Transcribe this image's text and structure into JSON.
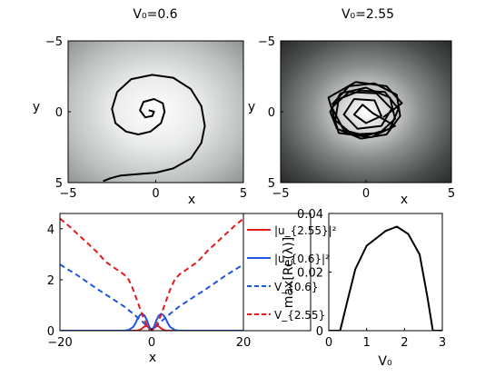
{
  "chart_data": [
    {
      "type": "heatmap",
      "title": "V₀=0.6",
      "xlabel": "x",
      "ylabel": "y",
      "xlim": [
        -5,
        5
      ],
      "ylim": [
        5,
        -5
      ],
      "xticks": [
        "−5",
        "0",
        "5"
      ],
      "yticks": [
        "−5",
        "0",
        "5"
      ],
      "background": "radial potential, light gray center to dark gray edges",
      "trajectory": [
        [
          -3.0,
          4.9
        ],
        [
          -2.6,
          4.7
        ],
        [
          -2.0,
          4.5
        ],
        [
          -1.0,
          4.4
        ],
        [
          0.0,
          4.3
        ],
        [
          1.0,
          4.0
        ],
        [
          2.0,
          3.3
        ],
        [
          2.6,
          2.2
        ],
        [
          2.8,
          1.0
        ],
        [
          2.6,
          -0.4
        ],
        [
          2.0,
          -1.6
        ],
        [
          1.0,
          -2.4
        ],
        [
          -0.2,
          -2.6
        ],
        [
          -1.4,
          -2.3
        ],
        [
          -2.2,
          -1.4
        ],
        [
          -2.5,
          -0.2
        ],
        [
          -2.3,
          0.8
        ],
        [
          -1.7,
          1.4
        ],
        [
          -1.0,
          1.6
        ],
        [
          -0.3,
          1.4
        ],
        [
          0.3,
          0.8
        ],
        [
          0.5,
          0.0
        ],
        [
          0.4,
          -0.6
        ],
        [
          -0.1,
          -0.9
        ],
        [
          -0.7,
          -0.7
        ],
        [
          -0.9,
          -0.1
        ],
        [
          -0.6,
          0.4
        ],
        [
          -0.2,
          0.3
        ],
        [
          -0.1,
          0.0
        ],
        [
          -0.4,
          -0.1
        ]
      ]
    },
    {
      "type": "heatmap",
      "title": "V₀=2.55",
      "xlabel": "x",
      "ylabel": "y",
      "xlim": [
        -5,
        5
      ],
      "ylim": [
        5,
        -5
      ],
      "xticks": [
        "−5",
        "0",
        "5"
      ],
      "yticks": [
        "−5",
        "0",
        "5"
      ],
      "background": "radial potential, white center to near-black edges",
      "trajectory": [
        [
          -2.0,
          -0.5
        ],
        [
          -1.0,
          -1.8
        ],
        [
          0.5,
          -2.0
        ],
        [
          1.8,
          -1.2
        ],
        [
          2.0,
          0.3
        ],
        [
          1.2,
          1.6
        ],
        [
          -0.3,
          1.9
        ],
        [
          -1.7,
          1.2
        ],
        [
          -2.1,
          0.0
        ],
        [
          -1.5,
          -1.3
        ],
        [
          0.0,
          -1.7
        ],
        [
          1.4,
          -1.0
        ],
        [
          1.7,
          0.5
        ],
        [
          0.8,
          1.5
        ],
        [
          -0.8,
          1.6
        ],
        [
          -1.8,
          0.6
        ],
        [
          -1.6,
          -0.9
        ],
        [
          -0.3,
          -1.5
        ],
        [
          1.1,
          -1.4
        ],
        [
          1.9,
          -0.2
        ],
        [
          1.4,
          1.2
        ],
        [
          0.0,
          1.7
        ],
        [
          -1.3,
          1.3
        ],
        [
          -2.0,
          -0.3
        ],
        [
          -1.0,
          -1.4
        ],
        [
          0.6,
          -1.3
        ],
        [
          1.5,
          -0.2
        ],
        [
          0.9,
          1.0
        ],
        [
          -0.5,
          1.2
        ],
        [
          -1.3,
          0.2
        ],
        [
          -0.7,
          -0.9
        ],
        [
          0.5,
          -0.8
        ],
        [
          0.9,
          0.3
        ],
        [
          0.0,
          0.8
        ],
        [
          -0.7,
          0.2
        ],
        [
          -0.2,
          -0.5
        ],
        [
          0.4,
          0.1
        ],
        [
          1.7,
          1.0
        ],
        [
          0.3,
          1.8
        ],
        [
          -1.6,
          1.5
        ],
        [
          -2.2,
          -1.0
        ],
        [
          -0.6,
          -2.1
        ],
        [
          1.2,
          -1.8
        ],
        [
          2.1,
          -0.6
        ],
        [
          1.0,
          0.4
        ]
      ]
    },
    {
      "type": "line",
      "xlabel": "x",
      "xlim": [
        -20,
        20
      ],
      "ylim": [
        0,
        4.6
      ],
      "xticks": [
        "−20",
        "0",
        "20"
      ],
      "yticks": [
        "0",
        "2",
        "4"
      ],
      "legend_position": "right (outside)",
      "series": [
        {
          "name": "|u_{2.55}|²",
          "color": "#e41a1c",
          "style": "solid",
          "x": [
            -20,
            -4,
            -3,
            -2.5,
            -2,
            -1.5,
            -1,
            -0.5,
            -0.2,
            0,
            0.2,
            0.5,
            1,
            1.5,
            2,
            2.5,
            3,
            4,
            20
          ],
          "y": [
            0,
            0,
            0.01,
            0.04,
            0.1,
            0.17,
            0.18,
            0.1,
            0.03,
            0,
            0.03,
            0.1,
            0.18,
            0.17,
            0.1,
            0.04,
            0.01,
            0,
            0
          ]
        },
        {
          "name": "|u_{0.6}|²",
          "color": "#2255dd",
          "style": "solid",
          "x": [
            -20,
            -6,
            -5,
            -4,
            -3.5,
            -3,
            -2.5,
            -2,
            -1.5,
            -1,
            -0.5,
            0,
            0.5,
            1,
            1.5,
            2,
            2.5,
            3,
            3.5,
            4,
            5,
            6,
            20
          ],
          "y": [
            0,
            0,
            0.03,
            0.15,
            0.3,
            0.5,
            0.62,
            0.66,
            0.58,
            0.4,
            0.15,
            0,
            0.15,
            0.4,
            0.58,
            0.66,
            0.62,
            0.5,
            0.3,
            0.15,
            0.03,
            0,
            0
          ]
        },
        {
          "name": "V_{0.6}",
          "color": "#2255dd",
          "style": "dashed",
          "x": [
            -20,
            -16,
            -12,
            -9,
            -6,
            -4,
            -2,
            -1,
            0,
            1,
            2,
            4,
            6,
            9,
            12,
            16,
            20
          ],
          "y": [
            2.6,
            2.15,
            1.65,
            1.3,
            0.95,
            0.66,
            0.35,
            0.17,
            0,
            0.17,
            0.35,
            0.66,
            0.95,
            1.3,
            1.65,
            2.15,
            2.6
          ]
        },
        {
          "name": "V_{2.55}",
          "color": "#e41a1c",
          "style": "dashed",
          "x": [
            -20,
            -18,
            -15,
            -12,
            -10,
            -8,
            -6,
            -5,
            -4,
            -3,
            -2,
            -1,
            -0.5,
            0,
            0.5,
            1,
            2,
            3,
            4,
            5,
            6,
            8,
            10,
            12,
            15,
            18,
            20
          ],
          "y": [
            4.4,
            4.1,
            3.6,
            3.1,
            2.7,
            2.45,
            2.2,
            2.0,
            1.6,
            1.1,
            0.6,
            0.2,
            0.05,
            0,
            0.05,
            0.2,
            0.6,
            1.1,
            1.6,
            2.0,
            2.2,
            2.45,
            2.7,
            3.1,
            3.6,
            4.1,
            4.4
          ]
        }
      ]
    },
    {
      "type": "line",
      "xlabel": "V₀",
      "ylabel": "max[Re(λ)]",
      "xlim": [
        0,
        3
      ],
      "ylim": [
        0,
        0.04
      ],
      "xticks": [
        "0",
        "1",
        "2",
        "3"
      ],
      "yticks": [
        "0",
        "0.02",
        "0.04"
      ],
      "series": [
        {
          "color": "#000000",
          "style": "solid",
          "x": [
            0,
            0.3,
            0.45,
            0.7,
            1.0,
            1.5,
            1.8,
            2.1,
            2.4,
            2.6,
            2.75,
            3.0
          ],
          "y": [
            0,
            0,
            0.008,
            0.021,
            0.029,
            0.034,
            0.0355,
            0.033,
            0.026,
            0.012,
            0,
            0
          ]
        }
      ]
    }
  ]
}
